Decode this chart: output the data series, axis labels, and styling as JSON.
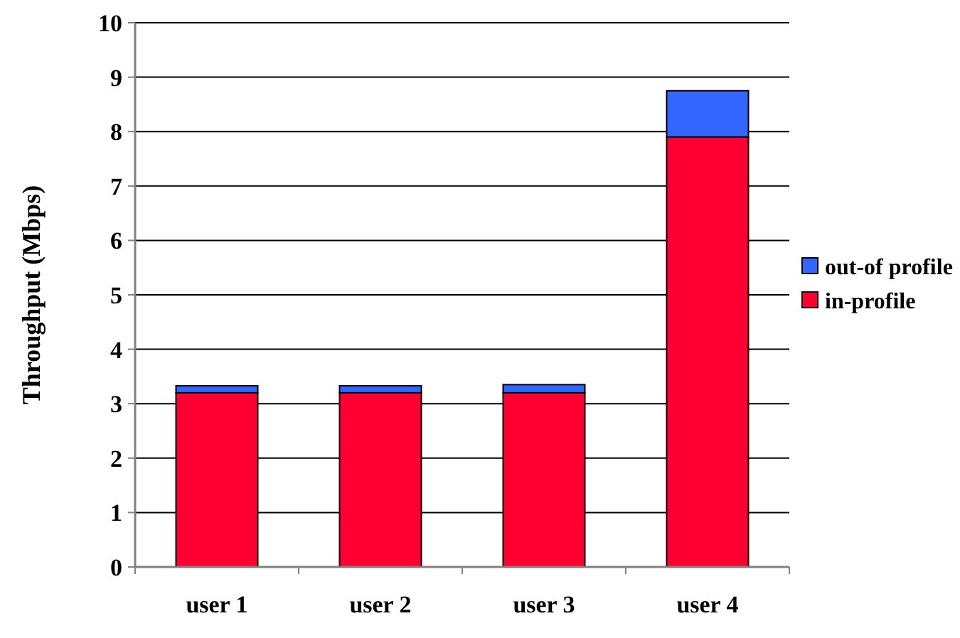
{
  "chart_data": {
    "type": "bar",
    "stacked": true,
    "ylabel": "Throughput (Mbps)",
    "categories": [
      "user 1",
      "user 2",
      "user 3",
      "user 4"
    ],
    "series": [
      {
        "name": "in-profile",
        "color": "#ff0033",
        "values": [
          3.2,
          3.2,
          3.2,
          7.9
        ]
      },
      {
        "name": "out-of profile",
        "color": "#3366ff",
        "values": [
          0.13,
          0.13,
          0.15,
          0.85
        ]
      }
    ],
    "ylim": [
      0,
      10
    ],
    "yticks": [
      0,
      1,
      2,
      3,
      4,
      5,
      6,
      7,
      8,
      9,
      10
    ],
    "grid": "y",
    "legend": "right"
  }
}
